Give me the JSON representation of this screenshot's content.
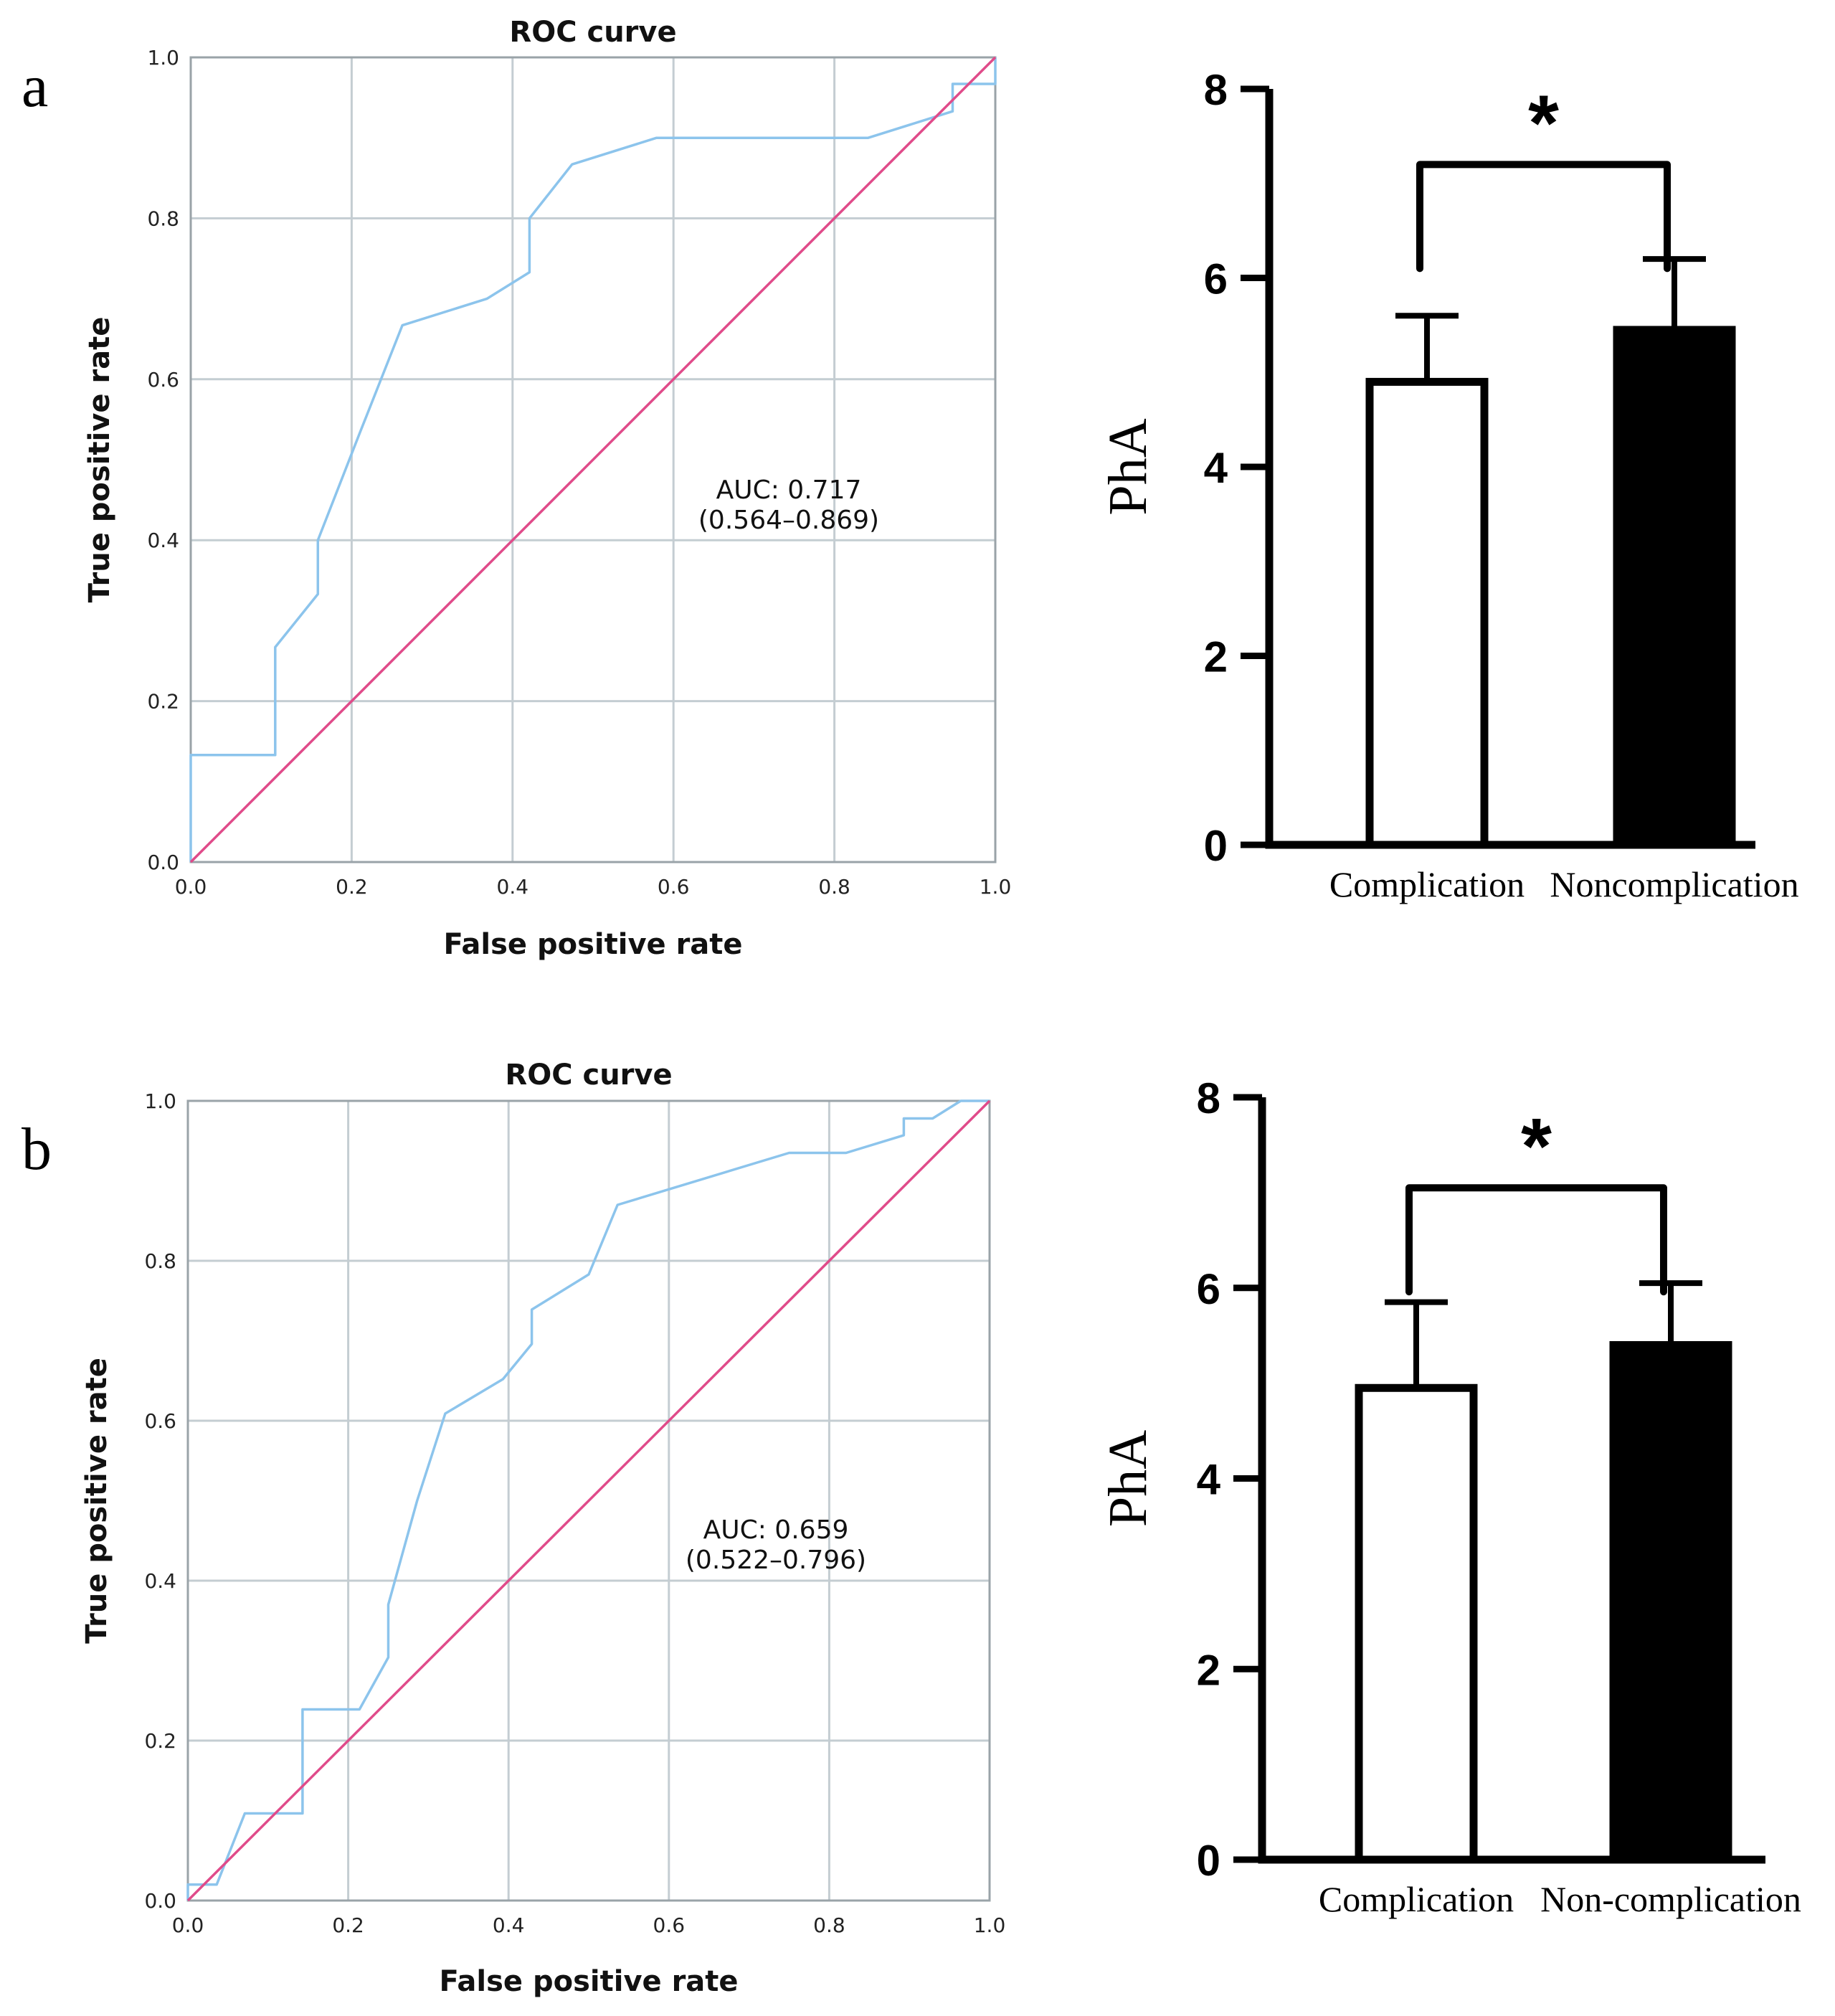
{
  "figure": {
    "panel_letters": [
      "a",
      "b"
    ]
  },
  "colors": {
    "roc_curve": "#8cc4ec",
    "reference_line": "#e04b8a",
    "grid": "#c4cdd2",
    "frame": "#9aa3a8",
    "bar_open": "#ffffff",
    "bar_filled": "#000000"
  },
  "chart_data": [
    {
      "id": "roc-a",
      "type": "line",
      "title": "ROC curve",
      "xlabel": "False positive rate",
      "ylabel": "True positive rate",
      "xlim": [
        0,
        1
      ],
      "ylim": [
        0,
        1
      ],
      "x_ticks": [
        "0.0",
        "0.2",
        "0.4",
        "0.6",
        "0.8",
        "1.0"
      ],
      "y_ticks": [
        "0.0",
        "0.2",
        "0.4",
        "0.6",
        "0.8",
        "1.0"
      ],
      "grid": true,
      "annotation": [
        "AUC: 0.717",
        "(0.564–0.869)"
      ],
      "series": [
        {
          "name": "ROC",
          "points": [
            [
              0,
              0
            ],
            [
              0,
              0.133
            ],
            [
              0.105,
              0.133
            ],
            [
              0.105,
              0.267
            ],
            [
              0.158,
              0.333
            ],
            [
              0.158,
              0.4
            ],
            [
              0.21,
              0.533
            ],
            [
              0.263,
              0.667
            ],
            [
              0.368,
              0.7
            ],
            [
              0.421,
              0.733
            ],
            [
              0.421,
              0.8
            ],
            [
              0.474,
              0.867
            ],
            [
              0.579,
              0.9
            ],
            [
              0.842,
              0.9
            ],
            [
              0.947,
              0.933
            ],
            [
              0.947,
              0.967
            ],
            [
              1,
              0.967
            ],
            [
              1,
              1
            ]
          ]
        },
        {
          "name": "Reference",
          "points": [
            [
              0,
              0
            ],
            [
              1,
              1
            ]
          ]
        }
      ]
    },
    {
      "id": "bar-a",
      "type": "bar",
      "ylabel": "PhA",
      "ylim": [
        0,
        8
      ],
      "y_ticks": [
        0,
        2,
        4,
        6,
        8
      ],
      "categories": [
        "Complication",
        "Noncomplication"
      ],
      "values": [
        4.9,
        5.45
      ],
      "errors": [
        0.7,
        0.75
      ],
      "significance": "*"
    },
    {
      "id": "roc-b",
      "type": "line",
      "title": "ROC curve",
      "xlabel": "False positive rate",
      "ylabel": "True positive rate",
      "xlim": [
        0,
        1
      ],
      "ylim": [
        0,
        1
      ],
      "x_ticks": [
        "0.0",
        "0.2",
        "0.4",
        "0.6",
        "0.8",
        "1.0"
      ],
      "y_ticks": [
        "0.0",
        "0.2",
        "0.4",
        "0.6",
        "0.8",
        "1.0"
      ],
      "grid": true,
      "annotation": [
        "AUC: 0.659",
        "(0.522–0.796)"
      ],
      "series": [
        {
          "name": "ROC",
          "points": [
            [
              0,
              0
            ],
            [
              0,
              0.02
            ],
            [
              0.036,
              0.02
            ],
            [
              0.071,
              0.109
            ],
            [
              0.143,
              0.109
            ],
            [
              0.143,
              0.239
            ],
            [
              0.214,
              0.239
            ],
            [
              0.25,
              0.304
            ],
            [
              0.25,
              0.37
            ],
            [
              0.286,
              0.5
            ],
            [
              0.321,
              0.609
            ],
            [
              0.393,
              0.652
            ],
            [
              0.429,
              0.696
            ],
            [
              0.429,
              0.739
            ],
            [
              0.5,
              0.783
            ],
            [
              0.536,
              0.87
            ],
            [
              0.75,
              0.935
            ],
            [
              0.821,
              0.935
            ],
            [
              0.893,
              0.957
            ],
            [
              0.893,
              0.978
            ],
            [
              0.929,
              0.978
            ],
            [
              0.964,
              1
            ],
            [
              1,
              1
            ]
          ]
        },
        {
          "name": "Reference",
          "points": [
            [
              0,
              0
            ],
            [
              1,
              1
            ]
          ]
        }
      ]
    },
    {
      "id": "bar-b",
      "type": "bar",
      "ylabel": "PhA",
      "ylim": [
        0,
        8
      ],
      "y_ticks": [
        0,
        2,
        4,
        6,
        8
      ],
      "categories": [
        "Complication",
        "Non-complication"
      ],
      "values": [
        4.95,
        5.4
      ],
      "errors": [
        0.9,
        0.65
      ],
      "significance": "*"
    }
  ]
}
